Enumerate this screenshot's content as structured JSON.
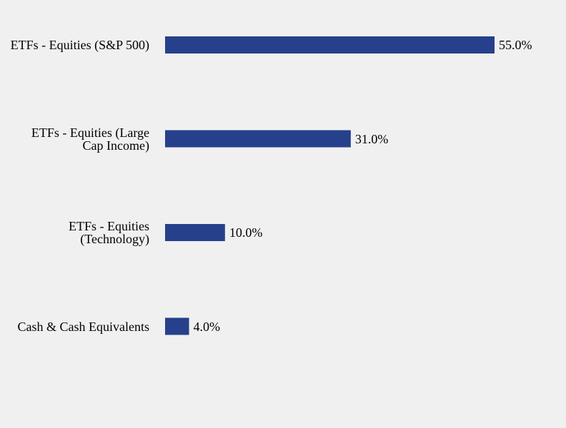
{
  "chart_data": {
    "type": "bar",
    "orientation": "horizontal",
    "categories": [
      "ETFs - Equities (S&P 500)",
      "ETFs - Equities (Large\nCap Income)",
      "ETFs - Equities\n(Technology)",
      "Cash & Cash Equivalents"
    ],
    "values": [
      55.0,
      31.0,
      10.0,
      4.0
    ],
    "value_labels": [
      "55.0%",
      "31.0%",
      "10.0%",
      "4.0%"
    ],
    "color": "#26408b"
  }
}
